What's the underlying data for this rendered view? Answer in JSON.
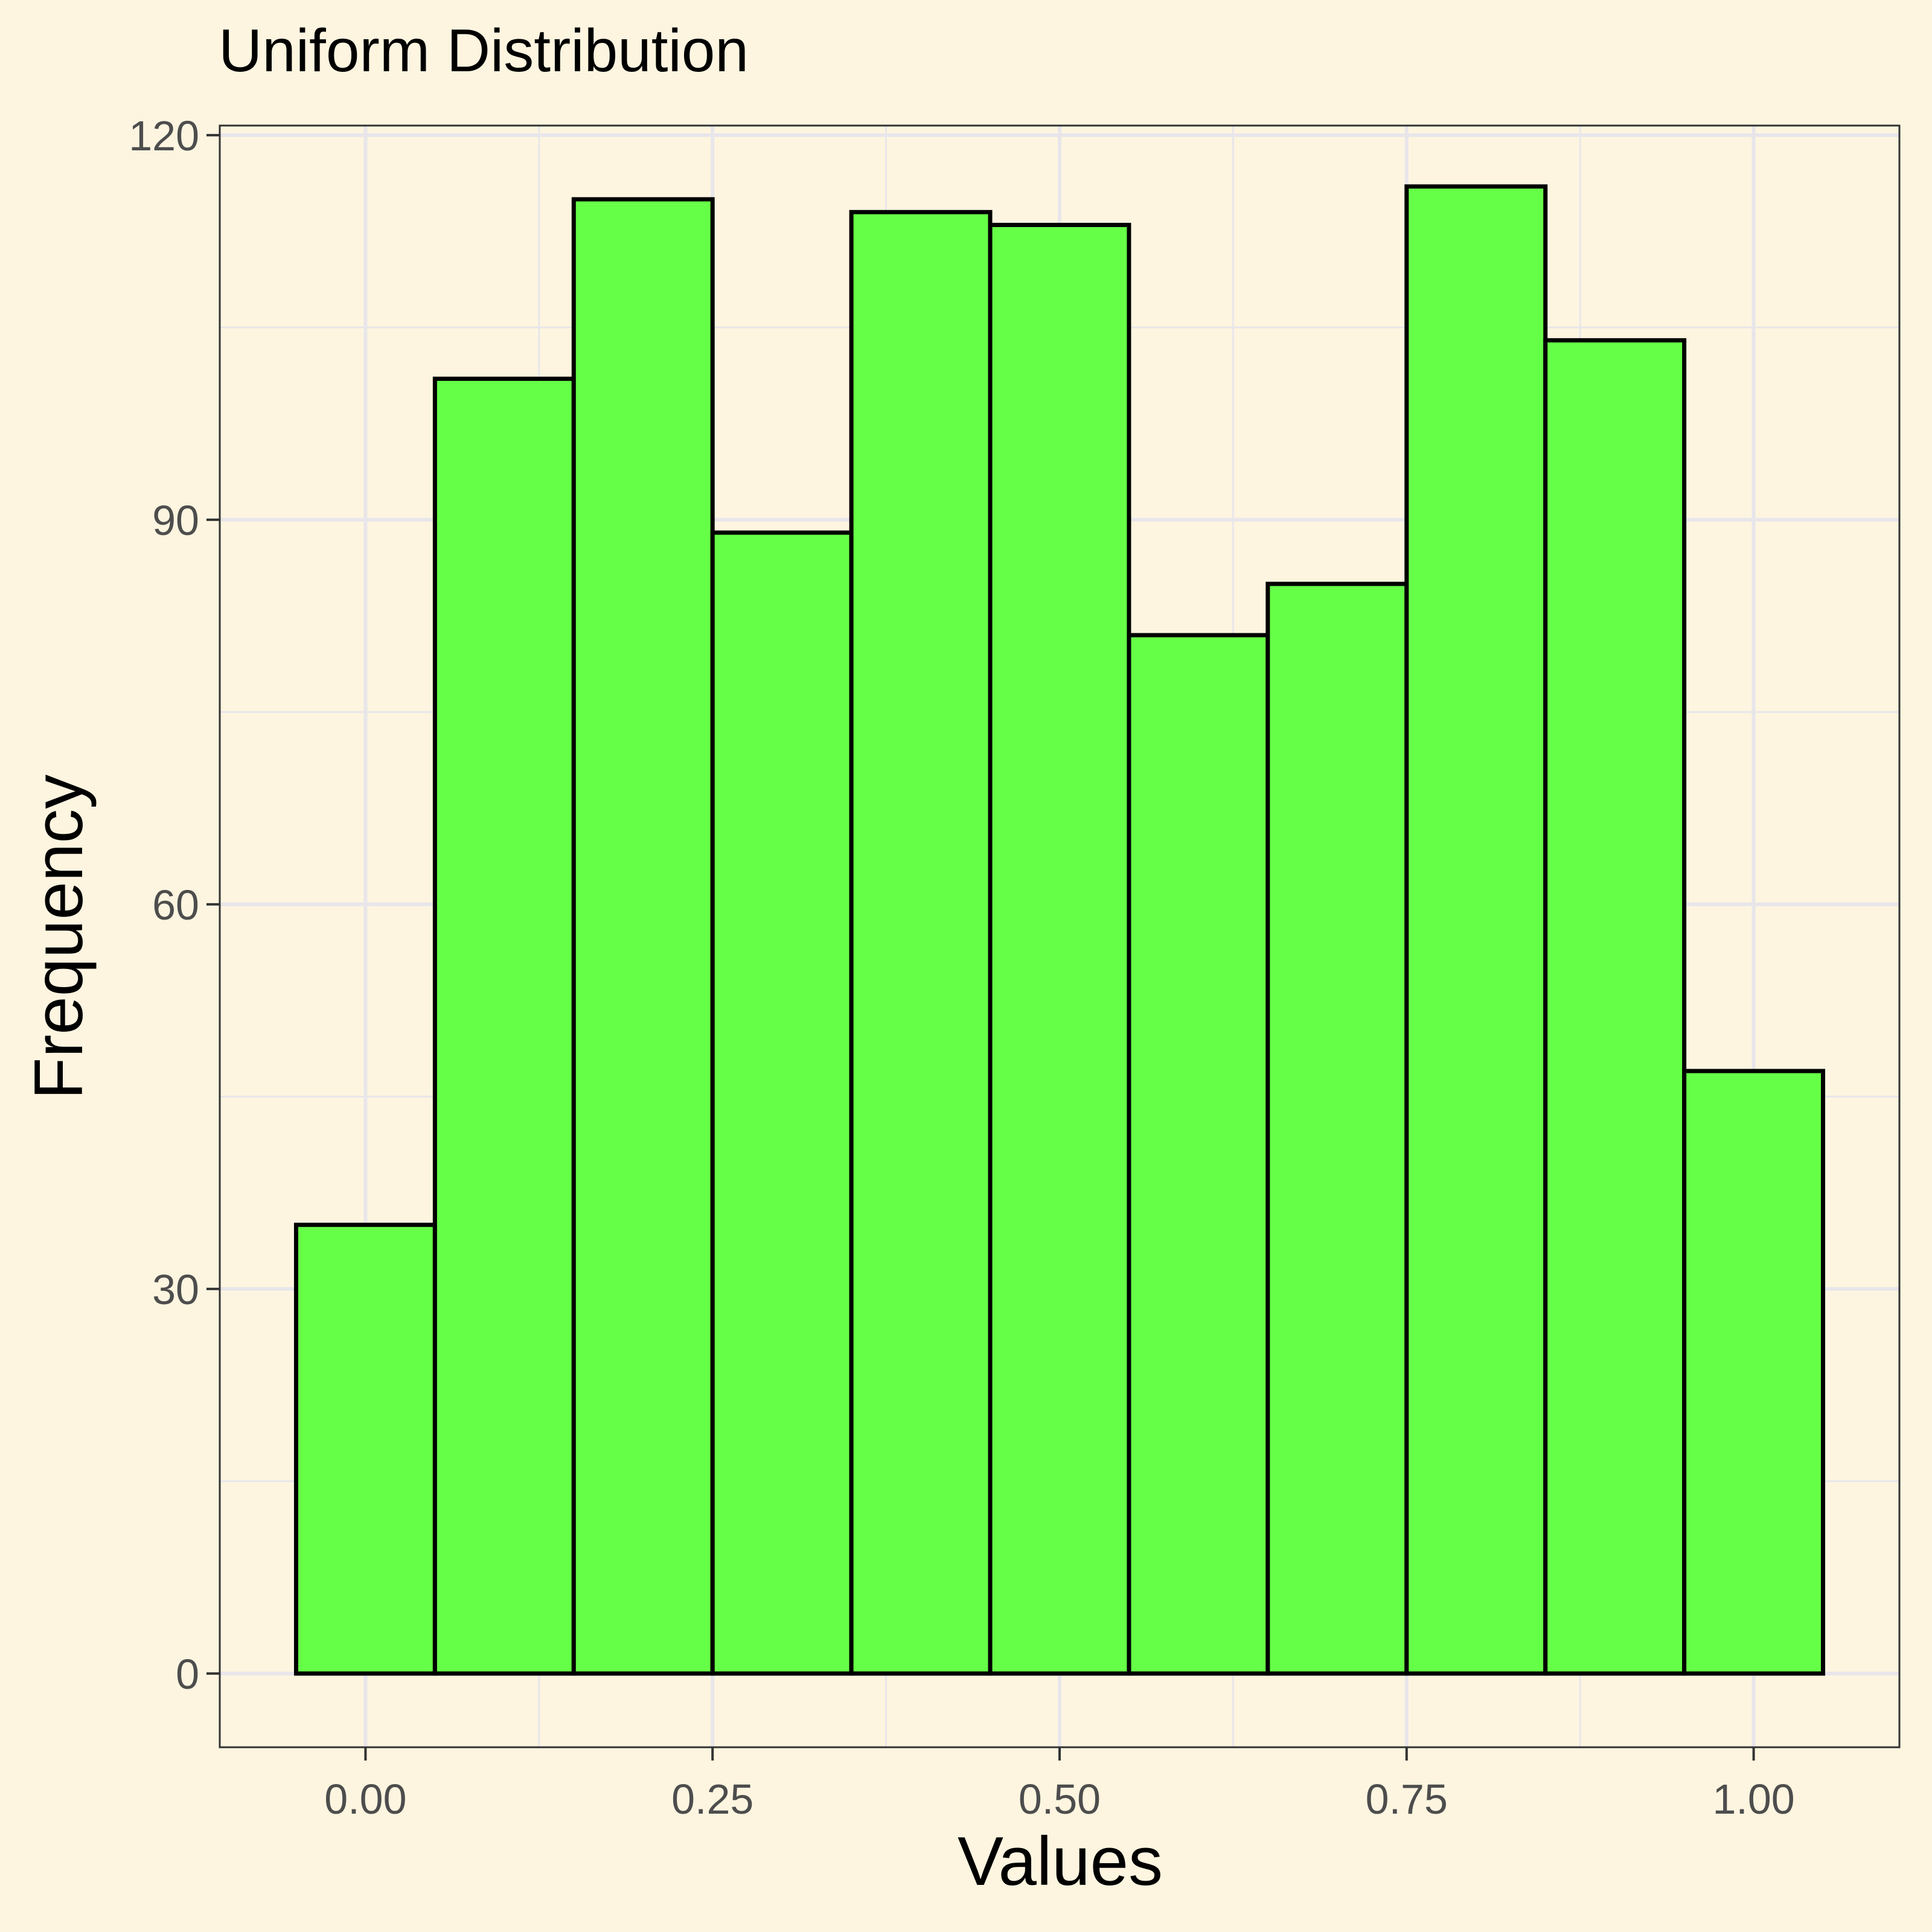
{
  "chart_data": {
    "type": "bar",
    "title": "Uniform Distribution",
    "xlabel": "Values",
    "ylabel": "Frequency",
    "bin_width": 0.1,
    "bins": [
      {
        "start": -0.05,
        "end": 0.05,
        "count": 35
      },
      {
        "start": 0.05,
        "end": 0.15,
        "count": 101
      },
      {
        "start": 0.15,
        "end": 0.25,
        "count": 115
      },
      {
        "start": 0.25,
        "end": 0.35,
        "count": 89
      },
      {
        "start": 0.35,
        "end": 0.45,
        "count": 114
      },
      {
        "start": 0.45,
        "end": 0.55,
        "count": 113
      },
      {
        "start": 0.55,
        "end": 0.65,
        "count": 81
      },
      {
        "start": 0.65,
        "end": 0.75,
        "count": 85
      },
      {
        "start": 0.75,
        "end": 0.85,
        "count": 116
      },
      {
        "start": 0.85,
        "end": 0.95,
        "count": 104
      },
      {
        "start": 0.95,
        "end": 1.05,
        "count": 47
      }
    ],
    "xlim": [
      -0.105,
      1.105
    ],
    "ylim": [
      -5.75,
      120.75
    ],
    "x_ticks": [
      0.0,
      0.25,
      0.5,
      0.75,
      1.0
    ],
    "x_tick_labels": [
      "0.00",
      "0.25",
      "0.50",
      "0.75",
      "1.00"
    ],
    "y_ticks": [
      0,
      30,
      60,
      90,
      120
    ],
    "y_tick_labels": [
      "0",
      "30",
      "60",
      "90",
      "120"
    ],
    "grid": true,
    "colors": {
      "background": "#fdf5e0",
      "panel": "#fdf5e0",
      "grid": "#e8e6ea",
      "bar_fill": "#66ff47",
      "bar_stroke": "#000000"
    }
  }
}
